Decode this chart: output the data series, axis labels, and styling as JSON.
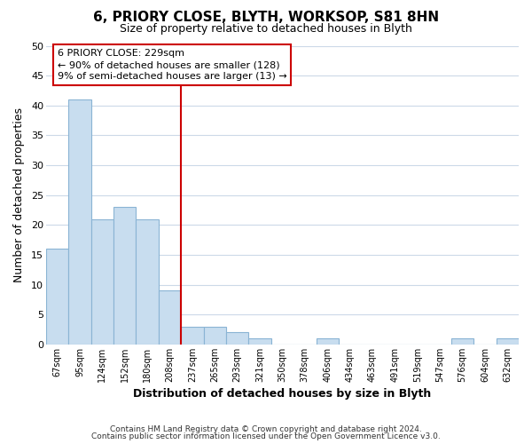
{
  "title": "6, PRIORY CLOSE, BLYTH, WORKSOP, S81 8HN",
  "subtitle": "Size of property relative to detached houses in Blyth",
  "xlabel": "Distribution of detached houses by size in Blyth",
  "ylabel": "Number of detached properties",
  "bar_labels": [
    "67sqm",
    "95sqm",
    "124sqm",
    "152sqm",
    "180sqm",
    "208sqm",
    "237sqm",
    "265sqm",
    "293sqm",
    "321sqm",
    "350sqm",
    "378sqm",
    "406sqm",
    "434sqm",
    "463sqm",
    "491sqm",
    "519sqm",
    "547sqm",
    "576sqm",
    "604sqm",
    "632sqm"
  ],
  "bar_values": [
    16,
    41,
    21,
    23,
    21,
    9,
    3,
    3,
    2,
    1,
    0,
    0,
    1,
    0,
    0,
    0,
    0,
    0,
    1,
    0,
    1
  ],
  "bar_color": "#c8ddef",
  "bar_edge_color": "#8ab4d4",
  "vline_x": 6,
  "vline_color": "#cc0000",
  "annotation_line1": "6 PRIORY CLOSE: 229sqm",
  "annotation_line2": "← 90% of detached houses are smaller (128)",
  "annotation_line3": "9% of semi-detached houses are larger (13) →",
  "annotation_box_color": "#ffffff",
  "annotation_box_edge_color": "#cc0000",
  "ylim": [
    0,
    50
  ],
  "yticks": [
    0,
    5,
    10,
    15,
    20,
    25,
    30,
    35,
    40,
    45,
    50
  ],
  "footer1": "Contains HM Land Registry data © Crown copyright and database right 2024.",
  "footer2": "Contains public sector information licensed under the Open Government Licence v3.0.",
  "bg_color": "#ffffff",
  "grid_color": "#ccd9e8"
}
